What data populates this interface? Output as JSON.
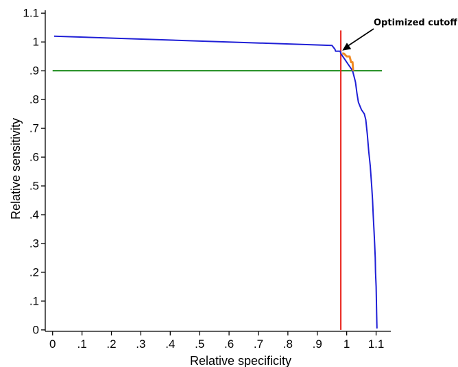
{
  "chart_data": {
    "type": "line",
    "xlabel": "Relative specificity",
    "ylabel": "Relative sensitivity",
    "xlim": [
      -0.025,
      1.15
    ],
    "ylim": [
      -0.005,
      1.11
    ],
    "x_ticks": [
      0,
      0.1,
      0.2,
      0.3,
      0.4,
      0.5,
      0.6,
      0.7,
      0.8,
      0.9,
      1.0,
      1.1
    ],
    "x_tick_labels": [
      "0",
      ".1",
      ".2",
      ".3",
      ".4",
      ".5",
      ".6",
      ".7",
      ".8",
      ".9",
      "1",
      "1.1"
    ],
    "y_ticks": [
      0,
      0.1,
      0.2,
      0.3,
      0.4,
      0.5,
      0.6,
      0.7,
      0.8,
      0.9,
      1.0,
      1.1
    ],
    "y_tick_labels": [
      "0",
      ".1",
      ".2",
      ".3",
      ".4",
      ".5",
      ".6",
      ".7",
      ".8",
      ".9",
      "1",
      "1.1"
    ],
    "grid": false,
    "reference_lines": {
      "horizontal_y": 0.9,
      "horizontal_color": "#1a8a1a",
      "vertical_x": 0.98,
      "vertical_y_range": [
        0,
        1.04
      ],
      "vertical_color": "#e8221b"
    },
    "series": [
      {
        "color": "#1f1fd6",
        "points": [
          [
            0.005,
            1.02
          ],
          [
            0.95,
            0.988
          ],
          [
            0.96,
            0.975
          ],
          [
            0.962,
            0.968
          ],
          [
            0.978,
            0.968
          ],
          [
            0.98,
            0.96
          ],
          [
            1.02,
            0.9
          ],
          [
            1.025,
            0.88
          ],
          [
            1.03,
            0.86
          ],
          [
            1.035,
            0.82
          ],
          [
            1.04,
            0.79
          ],
          [
            1.05,
            0.765
          ],
          [
            1.06,
            0.75
          ],
          [
            1.065,
            0.73
          ],
          [
            1.07,
            0.68
          ],
          [
            1.075,
            0.62
          ],
          [
            1.08,
            0.57
          ],
          [
            1.085,
            0.5
          ],
          [
            1.088,
            0.45
          ],
          [
            1.09,
            0.4
          ],
          [
            1.093,
            0.34
          ],
          [
            1.095,
            0.3
          ],
          [
            1.097,
            0.25
          ],
          [
            1.098,
            0.2
          ],
          [
            1.1,
            0.15
          ],
          [
            1.101,
            0.1
          ],
          [
            1.102,
            0.05
          ],
          [
            1.103,
            0.005
          ]
        ]
      },
      {
        "color": "#f08a24",
        "points": [
          [
            0.985,
            0.96
          ],
          [
            0.99,
            0.96
          ],
          [
            1.0,
            0.95
          ],
          [
            1.01,
            0.95
          ],
          [
            1.015,
            0.93
          ],
          [
            1.02,
            0.93
          ],
          [
            1.022,
            0.9
          ]
        ]
      }
    ],
    "annotations": [
      {
        "text": "Optimized cutoff",
        "arrow_to": [
          0.985,
          0.97
        ]
      }
    ],
    "colors": {
      "axis": "#000000"
    }
  }
}
